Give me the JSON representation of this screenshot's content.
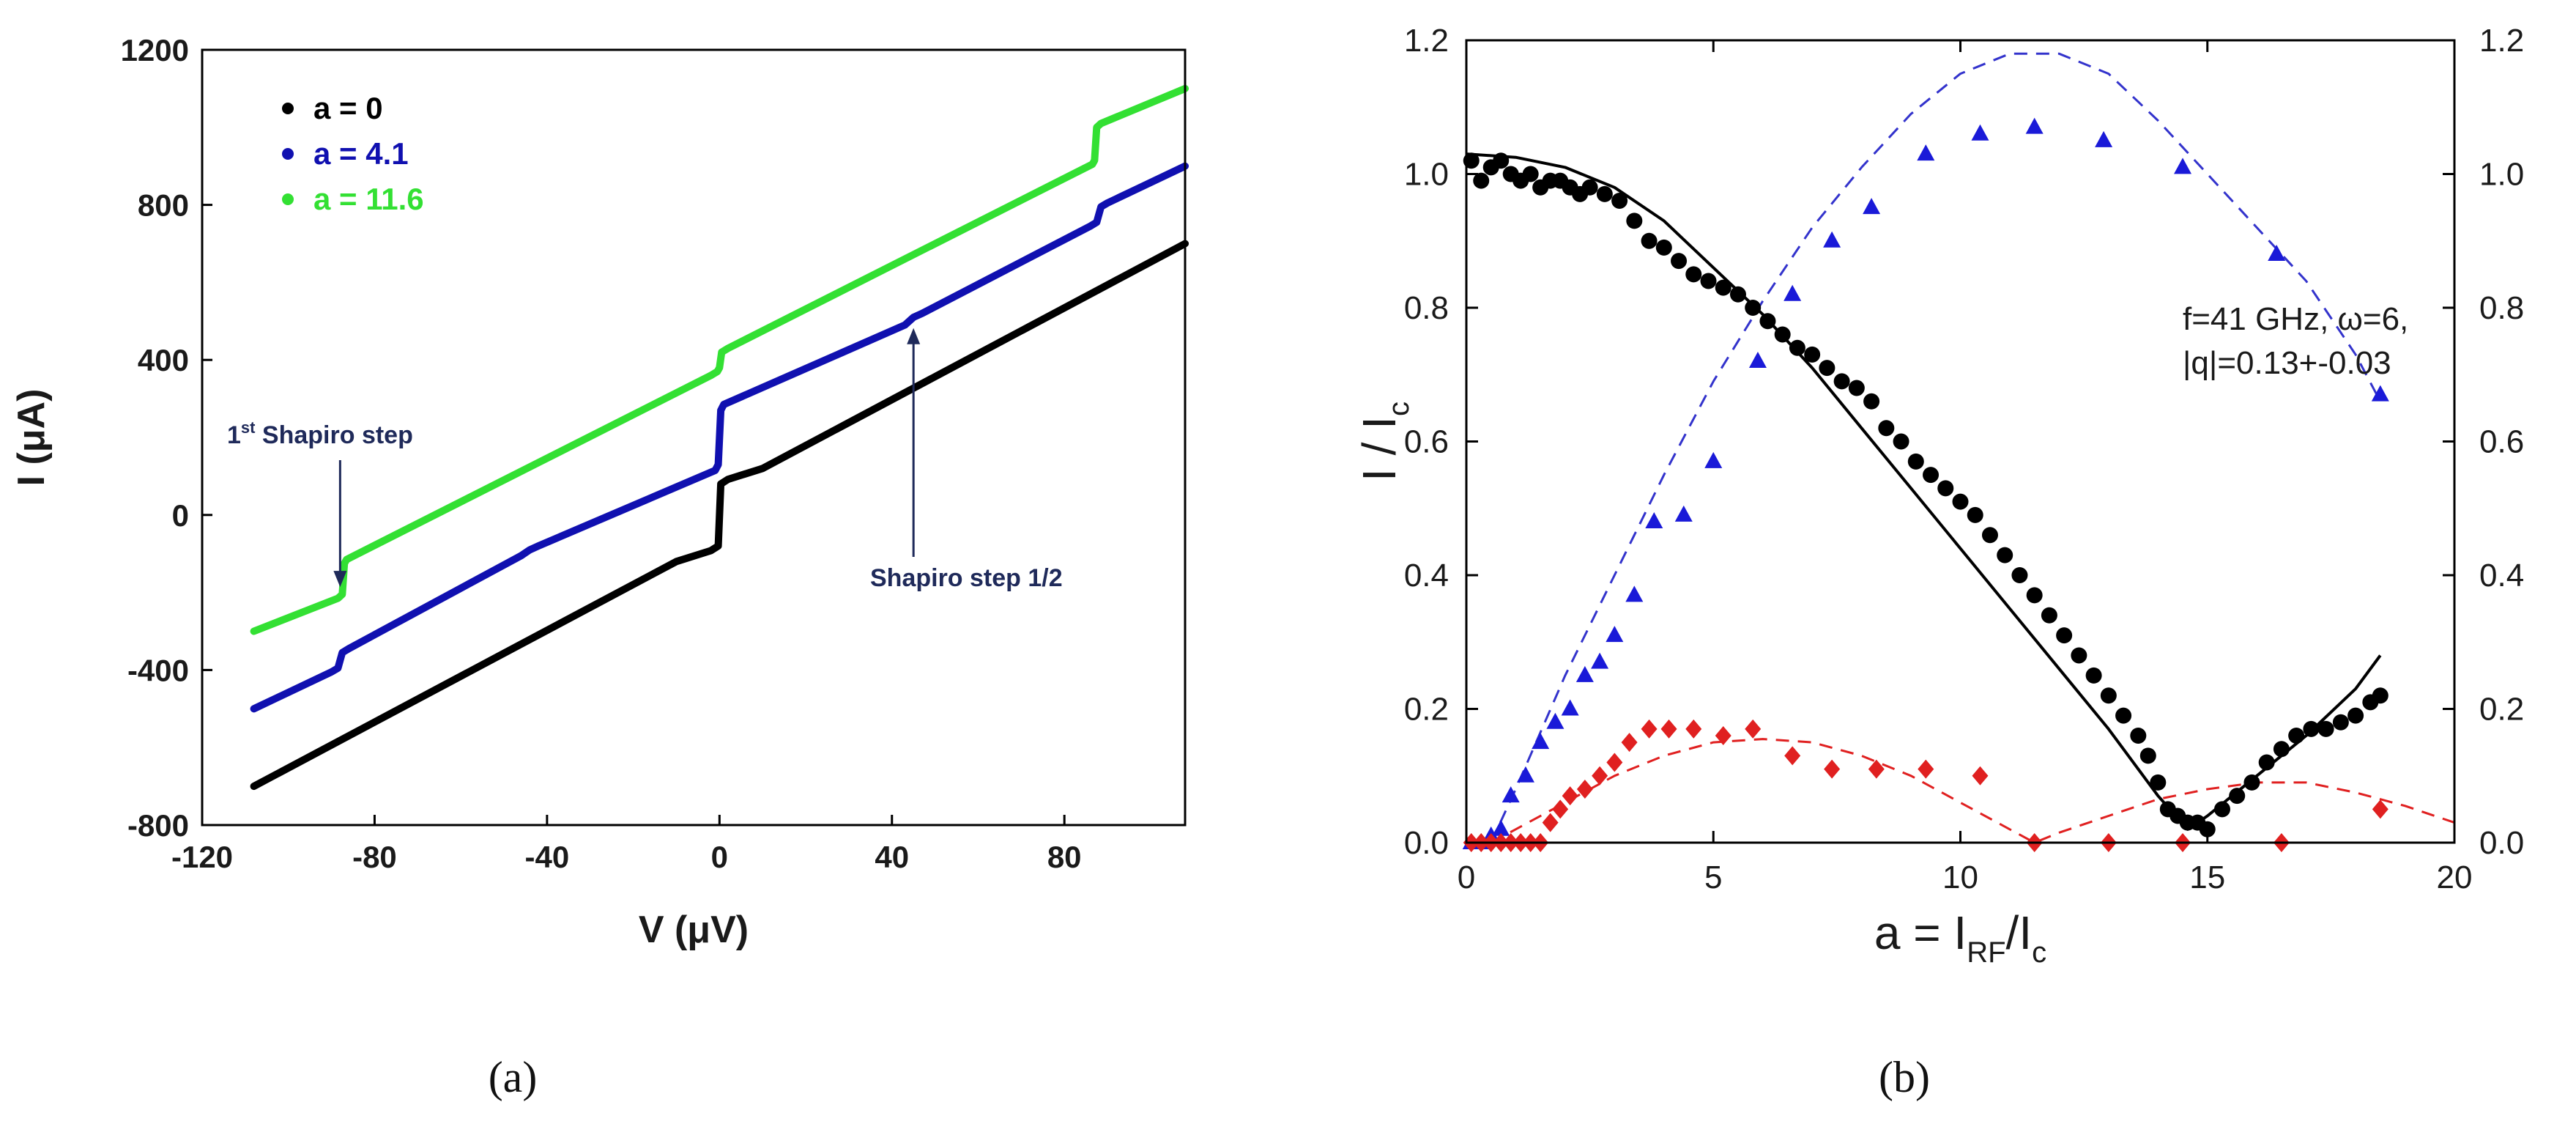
{
  "captions": {
    "a": "(a)",
    "b": "(b)"
  },
  "chart_data": [
    {
      "type": "line",
      "panel": "a",
      "xlabel": "V (μV)",
      "ylabel": "I (μA)",
      "xlim": [
        -120,
        108
      ],
      "ylim": [
        -800,
        1200
      ],
      "xticks": [
        "-120",
        "-80",
        "-40",
        "0",
        "40",
        "80"
      ],
      "yticks": [
        "-800",
        "-400",
        "0",
        "400",
        "800",
        "1200"
      ],
      "legend": [
        {
          "label": "a = 0",
          "color": "#000000"
        },
        {
          "label": "a = 4.1",
          "color": "#1010b0"
        },
        {
          "label": "a = 11.6",
          "color": "#33e033"
        }
      ],
      "series": [
        {
          "name": "a = 0",
          "color": "#000000",
          "x": [
            -108,
            -10,
            -2,
            -0.3,
            0.3,
            2,
            10,
            108
          ],
          "y": [
            -700,
            -120,
            -92,
            -80,
            80,
            92,
            120,
            700
          ]
        },
        {
          "name": "a = 4.1",
          "color": "#1010b0",
          "x": [
            -108,
            -90,
            -88.5,
            -87.5,
            -86,
            -46,
            -44,
            -42,
            -1,
            -0.3,
            0.3,
            1,
            43,
            45,
            47,
            86,
            87.5,
            88.5,
            90,
            108
          ],
          "y": [
            -500,
            -405,
            -395,
            -355,
            -345,
            -105,
            -90,
            -80,
            115,
            130,
            270,
            285,
            490,
            510,
            520,
            745,
            755,
            795,
            805,
            900
          ]
        },
        {
          "name": "a = 11.6",
          "color": "#33e033",
          "x": [
            -108,
            -88.5,
            -87.5,
            -87,
            -86.5,
            -2,
            -0.5,
            0,
            0.5,
            2,
            86.5,
            87,
            87.5,
            88.5,
            108
          ],
          "y": [
            -300,
            -215,
            -205,
            -125,
            -115,
            360,
            370,
            380,
            420,
            430,
            905,
            915,
            1000,
            1010,
            1100
          ]
        }
      ],
      "annotations": [
        {
          "text_sup_base": "1",
          "text_sup": "st",
          "text_rest": " Shapiro step",
          "x": -88,
          "y": -220
        },
        {
          "text": "Shapiro step 1/2",
          "x": 45,
          "y": 520
        }
      ]
    },
    {
      "type": "scatter",
      "panel": "b",
      "xlabel_main": "a = I",
      "xlabel_sub1": "RF",
      "xlabel_slash": "/I",
      "xlabel_sub2": "c",
      "ylabel_main": "I / I",
      "ylabel_sub": "c",
      "xlim": [
        0,
        20
      ],
      "ylim": [
        0,
        1.2
      ],
      "xticks": [
        "0",
        "5",
        "10",
        "15",
        "20"
      ],
      "yticks": [
        "0.0",
        "0.2",
        "0.4",
        "0.6",
        "0.8",
        "1.0",
        "1.2"
      ],
      "right_yticks": [
        "0.0",
        "0.2",
        "0.4",
        "0.6",
        "0.8",
        "1.0",
        "1.2"
      ],
      "annotation": [
        "f=41 GHz, ω=6,",
        "|q|=0.13+-0.03"
      ],
      "series": [
        {
          "name": "black-dots",
          "marker": "circle",
          "color": "#000000",
          "x": [
            0.1,
            0.3,
            0.5,
            0.7,
            0.9,
            1.1,
            1.3,
            1.5,
            1.7,
            1.9,
            2.1,
            2.3,
            2.5,
            2.8,
            3.1,
            3.4,
            3.7,
            4.0,
            4.3,
            4.6,
            4.9,
            5.2,
            5.5,
            5.8,
            6.1,
            6.4,
            6.7,
            7.0,
            7.3,
            7.6,
            7.9,
            8.2,
            8.5,
            8.8,
            9.1,
            9.4,
            9.7,
            10.0,
            10.3,
            10.6,
            10.9,
            11.2,
            11.5,
            11.8,
            12.1,
            12.4,
            12.7,
            13.0,
            13.3,
            13.6,
            13.8,
            14.0,
            14.2,
            14.4,
            14.6,
            14.8,
            15.0,
            15.3,
            15.6,
            15.9,
            16.2,
            16.5,
            16.8,
            17.1,
            17.4,
            17.7,
            18.0,
            18.3,
            18.5
          ],
          "y": [
            1.02,
            0.99,
            1.01,
            1.02,
            1.0,
            0.99,
            1.0,
            0.98,
            0.99,
            0.99,
            0.98,
            0.97,
            0.98,
            0.97,
            0.96,
            0.93,
            0.9,
            0.89,
            0.87,
            0.85,
            0.84,
            0.83,
            0.82,
            0.8,
            0.78,
            0.76,
            0.74,
            0.73,
            0.71,
            0.69,
            0.68,
            0.66,
            0.62,
            0.6,
            0.57,
            0.55,
            0.53,
            0.51,
            0.49,
            0.46,
            0.43,
            0.4,
            0.37,
            0.34,
            0.31,
            0.28,
            0.25,
            0.22,
            0.19,
            0.16,
            0.13,
            0.09,
            0.05,
            0.04,
            0.03,
            0.03,
            0.02,
            0.05,
            0.07,
            0.09,
            0.12,
            0.14,
            0.16,
            0.17,
            0.17,
            0.18,
            0.19,
            0.21,
            0.22
          ]
        },
        {
          "name": "blue-triangles",
          "marker": "triangle",
          "color": "#1a1ad8",
          "x": [
            0.1,
            0.3,
            0.5,
            0.7,
            0.9,
            1.2,
            1.5,
            1.8,
            2.1,
            2.4,
            2.7,
            3.0,
            3.4,
            3.8,
            4.4,
            5.0,
            5.9,
            6.6,
            7.4,
            8.2,
            9.3,
            10.4,
            11.5,
            12.9,
            14.5,
            16.4,
            18.5
          ],
          "y": [
            0.0,
            0.0,
            0.01,
            0.02,
            0.07,
            0.1,
            0.15,
            0.18,
            0.2,
            0.25,
            0.27,
            0.31,
            0.37,
            0.48,
            0.49,
            0.57,
            0.72,
            0.82,
            0.9,
            0.95,
            1.03,
            1.06,
            1.07,
            1.05,
            1.01,
            0.88,
            0.67
          ]
        },
        {
          "name": "red-diamonds",
          "marker": "diamond",
          "color": "#e02020",
          "x": [
            0.1,
            0.3,
            0.5,
            0.7,
            0.9,
            1.1,
            1.3,
            1.5,
            1.7,
            1.9,
            2.1,
            2.4,
            2.7,
            3.0,
            3.3,
            3.7,
            4.1,
            4.6,
            5.2,
            5.8,
            6.6,
            7.4,
            8.3,
            9.3,
            10.4,
            11.5,
            13.0,
            14.5,
            16.5,
            18.5
          ],
          "y": [
            0.0,
            0.0,
            0.0,
            0.0,
            0.0,
            0.0,
            0.0,
            0.0,
            0.03,
            0.05,
            0.07,
            0.08,
            0.1,
            0.12,
            0.15,
            0.17,
            0.17,
            0.17,
            0.16,
            0.17,
            0.13,
            0.11,
            0.11,
            0.11,
            0.1,
            0.0,
            0.0,
            0.0,
            0.0,
            0.05
          ]
        },
        {
          "name": "black-fit-curve",
          "marker": "line",
          "color": "#000000",
          "x": [
            0,
            1,
            2,
            3,
            4,
            5,
            6,
            7,
            8,
            9,
            10,
            11,
            12,
            13,
            14,
            14.6,
            15,
            16,
            17,
            18,
            18.5
          ],
          "y": [
            1.03,
            1.025,
            1.01,
            0.98,
            0.93,
            0.86,
            0.79,
            0.71,
            0.62,
            0.53,
            0.44,
            0.35,
            0.26,
            0.17,
            0.07,
            0.02,
            0.04,
            0.1,
            0.16,
            0.23,
            0.28
          ]
        },
        {
          "name": "blue-dashed-fit",
          "marker": "dashed",
          "color": "#3333cc",
          "x": [
            0.5,
            1,
            2,
            3,
            4,
            5,
            6,
            7,
            8,
            9,
            10,
            11,
            12,
            13,
            14,
            15,
            16,
            17,
            18,
            18.5
          ],
          "y": [
            0.0,
            0.08,
            0.25,
            0.4,
            0.55,
            0.69,
            0.81,
            0.92,
            1.01,
            1.09,
            1.15,
            1.18,
            1.18,
            1.15,
            1.08,
            1.0,
            0.92,
            0.84,
            0.73,
            0.66
          ]
        },
        {
          "name": "red-dashed-fit",
          "marker": "dashed",
          "color": "#e02020",
          "x": [
            0.5,
            1,
            2,
            3,
            4,
            5,
            6,
            7,
            8,
            9,
            10,
            11,
            11.5,
            12,
            13,
            14,
            15,
            16,
            17,
            18,
            19,
            20
          ],
          "y": [
            0.0,
            0.02,
            0.06,
            0.1,
            0.13,
            0.15,
            0.155,
            0.15,
            0.13,
            0.1,
            0.06,
            0.02,
            0.0,
            0.015,
            0.04,
            0.065,
            0.08,
            0.09,
            0.09,
            0.075,
            0.055,
            0.03
          ]
        }
      ]
    }
  ]
}
